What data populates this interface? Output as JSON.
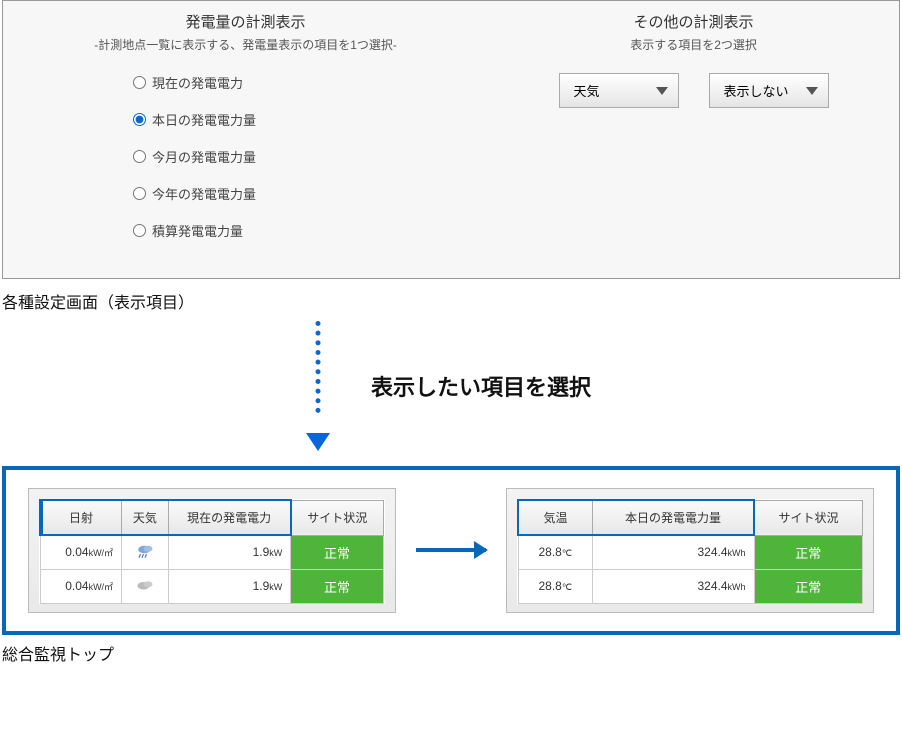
{
  "settings": {
    "left": {
      "title": "発電量の計測表示",
      "subtitle": "-計測地点一覧に表示する、発電量表示の項目を1つ選択-",
      "radios": [
        {
          "label": "現在の発電電力",
          "checked": false
        },
        {
          "label": "本日の発電電力量",
          "checked": true
        },
        {
          "label": "今月の発電電力量",
          "checked": false
        },
        {
          "label": "今年の発電電力量",
          "checked": false
        },
        {
          "label": "積算発電電力量",
          "checked": false
        }
      ]
    },
    "right": {
      "title": "その他の計測表示",
      "subtitle": "表示する項目を2つ選択",
      "dropdowns": [
        {
          "value": "天気"
        },
        {
          "value": "表示しない"
        }
      ]
    }
  },
  "caption_settings": "各種設定画面（表示項目）",
  "instruction": "表示したい項目を選択",
  "tables": {
    "left": {
      "headers": [
        "日射",
        "天気",
        "現在の発電電力",
        "サイト状況"
      ],
      "highlight_cols": 3,
      "rows": [
        {
          "c1": "0.04",
          "u1": "kW/㎡",
          "icon": "rain",
          "c3": "1.9",
          "u3": "kW",
          "status": "正常"
        },
        {
          "c1": "0.04",
          "u1": "kW/㎡",
          "icon": "cloud",
          "c3": "1.9",
          "u3": "kW",
          "status": "正常"
        }
      ]
    },
    "right": {
      "headers": [
        "気温",
        "本日の発電電力量",
        "サイト状況"
      ],
      "highlight_cols": 2,
      "rows": [
        {
          "c1": "28.8",
          "u1": "℃",
          "c2": "324.4",
          "u2": "kWh",
          "status": "正常"
        },
        {
          "c1": "28.8",
          "u1": "℃",
          "c2": "324.4",
          "u2": "kWh",
          "status": "正常"
        }
      ]
    }
  },
  "caption_monitor": "総合監視トップ",
  "colors": {
    "accent": "#0867b8",
    "status_ok": "#4fb43a",
    "panel_border": "#999999"
  }
}
